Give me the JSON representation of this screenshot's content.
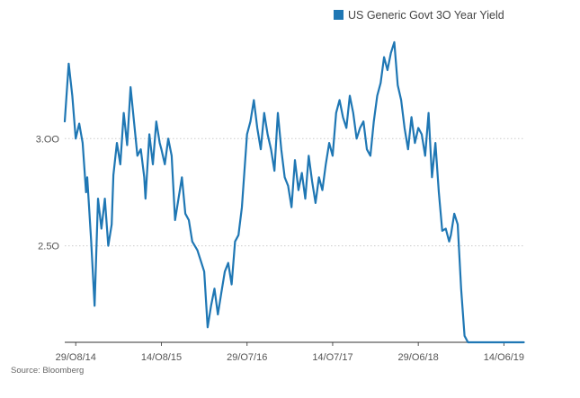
{
  "chart_data": {
    "type": "line",
    "title": "",
    "xlabel": "",
    "ylabel": "",
    "source": "Source: Bloomberg",
    "legend": {
      "position": "top-right"
    },
    "grid": {
      "horizontal": true,
      "vertical": false
    },
    "colors": {
      "series": "#1f77b4",
      "grid": "#cccccc",
      "axis": "#333333"
    },
    "ylim": [
      2.05,
      3.5
    ],
    "yticks": [
      {
        "value": 2.5,
        "label": "2.5O"
      },
      {
        "value": 3.0,
        "label": "3.OO"
      }
    ],
    "xlim": [
      "2014-07-15",
      "2019-09-05"
    ],
    "xticks": [
      {
        "date": "2014-08-29",
        "label": "29/O8/14"
      },
      {
        "date": "2015-08-14",
        "label": "14/O8/15"
      },
      {
        "date": "2016-07-29",
        "label": "29/O7/16"
      },
      {
        "date": "2017-07-14",
        "label": "14/O7/17"
      },
      {
        "date": "2018-06-29",
        "label": "29/O6/18"
      },
      {
        "date": "2019-06-14",
        "label": "14/O6/19"
      }
    ],
    "series": [
      {
        "name": "US Generic Govt 3O Year Yield",
        "x": [
          "2014-07-15",
          "2014-07-31",
          "2014-08-15",
          "2014-08-29",
          "2014-09-12",
          "2014-09-26",
          "2014-10-10",
          "2014-10-15",
          "2014-10-31",
          "2014-11-14",
          "2014-11-28",
          "2014-12-12",
          "2014-12-26",
          "2015-01-09",
          "2015-01-23",
          "2015-01-30",
          "2015-02-13",
          "2015-02-27",
          "2015-03-13",
          "2015-03-27",
          "2015-04-10",
          "2015-04-24",
          "2015-05-08",
          "2015-05-22",
          "2015-06-05",
          "2015-06-10",
          "2015-06-26",
          "2015-07-10",
          "2015-07-24",
          "2015-08-07",
          "2015-08-14",
          "2015-08-28",
          "2015-09-11",
          "2015-09-25",
          "2015-10-09",
          "2015-10-23",
          "2015-11-06",
          "2015-11-20",
          "2015-12-04",
          "2015-12-18",
          "2016-01-08",
          "2016-01-22",
          "2016-02-05",
          "2016-02-19",
          "2016-03-04",
          "2016-03-18",
          "2016-04-01",
          "2016-04-15",
          "2016-04-29",
          "2016-05-13",
          "2016-05-27",
          "2016-06-10",
          "2016-06-24",
          "2016-07-08",
          "2016-07-29",
          "2016-08-12",
          "2016-08-26",
          "2016-09-09",
          "2016-09-23",
          "2016-10-07",
          "2016-10-21",
          "2016-11-04",
          "2016-11-18",
          "2016-12-02",
          "2016-12-16",
          "2016-12-30",
          "2017-01-13",
          "2017-01-27",
          "2017-02-10",
          "2017-02-24",
          "2017-03-10",
          "2017-03-24",
          "2017-04-07",
          "2017-04-21",
          "2017-05-05",
          "2017-05-19",
          "2017-06-02",
          "2017-06-16",
          "2017-06-30",
          "2017-07-14",
          "2017-07-28",
          "2017-08-11",
          "2017-08-25",
          "2017-09-08",
          "2017-09-22",
          "2017-10-06",
          "2017-10-20",
          "2017-11-03",
          "2017-11-17",
          "2017-12-01",
          "2017-12-15",
          "2017-12-29",
          "2018-01-12",
          "2018-01-26",
          "2018-02-09",
          "2018-02-23",
          "2018-03-09",
          "2018-03-23",
          "2018-04-06",
          "2018-04-20",
          "2018-05-04",
          "2018-05-18",
          "2018-06-01",
          "2018-06-15",
          "2018-06-29",
          "2018-07-13",
          "2018-07-27",
          "2018-08-10",
          "2018-08-24",
          "2018-09-07",
          "2018-09-21",
          "2018-10-05",
          "2018-10-19",
          "2018-11-02",
          "2018-11-09",
          "2018-11-23",
          "2018-12-07",
          "2018-12-21",
          "2019-01-04",
          "2019-01-18",
          "2019-02-01",
          "2019-02-15",
          "2019-03-01",
          "2019-03-15",
          "2019-03-29",
          "2019-04-12",
          "2019-04-26",
          "2019-05-10",
          "2019-05-24",
          "2019-06-07",
          "2019-06-14",
          "2019-06-28",
          "2019-07-12",
          "2019-07-26",
          "2019-08-09",
          "2019-08-23",
          "2019-09-03"
        ],
        "y": [
          3.08,
          3.35,
          3.2,
          3.0,
          3.07,
          2.98,
          2.75,
          2.82,
          2.52,
          2.22,
          2.72,
          2.58,
          2.72,
          2.5,
          2.6,
          2.83,
          2.98,
          2.88,
          3.12,
          2.97,
          3.24,
          3.08,
          2.92,
          2.95,
          2.82,
          2.72,
          3.02,
          2.88,
          3.08,
          2.98,
          2.95,
          2.88,
          3.0,
          2.92,
          2.62,
          2.72,
          2.82,
          2.65,
          2.62,
          2.52,
          2.48,
          2.43,
          2.38,
          2.12,
          2.22,
          2.3,
          2.18,
          2.28,
          2.38,
          2.42,
          2.32,
          2.52,
          2.55,
          2.68,
          3.02,
          3.08,
          3.18,
          3.05,
          2.95,
          3.12,
          3.02,
          2.95,
          2.85,
          3.12,
          2.95,
          2.82,
          2.78,
          2.68,
          2.9,
          2.76,
          2.84,
          2.72,
          2.92,
          2.8,
          2.7,
          2.82,
          2.76,
          2.88,
          2.98,
          2.92,
          3.12,
          3.18,
          3.1,
          3.05,
          3.2,
          3.12,
          3.0,
          3.05,
          3.08,
          2.95,
          2.92,
          3.08,
          3.2,
          3.26,
          3.38,
          3.32,
          3.4,
          3.45,
          3.25,
          3.18,
          3.05,
          2.95,
          3.1,
          2.98,
          3.05,
          3.02,
          2.92,
          3.12,
          2.82,
          2.98,
          2.75,
          2.57,
          2.58,
          2.52,
          2.55,
          2.65,
          2.6,
          2.3,
          2.08,
          2.05,
          2.05,
          2.05,
          2.05,
          2.05,
          2.05,
          2.05,
          2.05,
          2.05,
          2.05,
          2.05,
          2.05,
          2.05,
          2.05,
          2.05,
          2.05,
          2.05,
          2.05
        ]
      }
    ]
  }
}
